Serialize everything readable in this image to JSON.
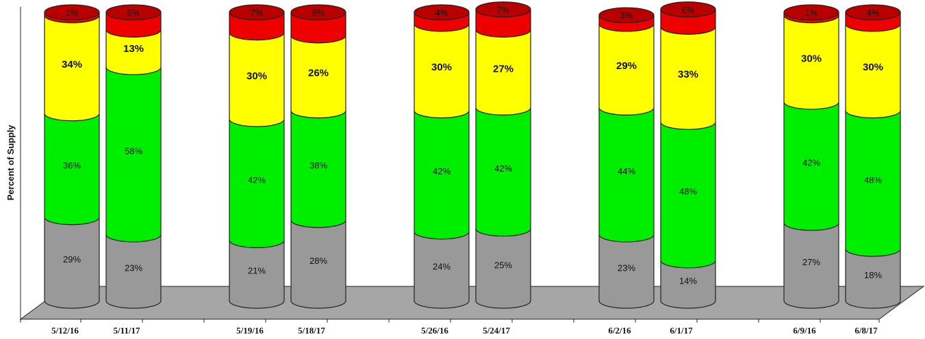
{
  "chart_data": {
    "type": "bar",
    "stacked": true,
    "ylabel": "Percent of Supply",
    "ylim": [
      0,
      100
    ],
    "grid": false,
    "legend": "none",
    "categories": [
      "5/12/16",
      "5/11/17",
      "5/19/16",
      "5/18/17",
      "5/26/16",
      "5/24/17",
      "6/2/16",
      "6/1/17",
      "6/9/16",
      "6/8/17"
    ],
    "series": [
      {
        "color": "#999999",
        "values": [
          29,
          23,
          21,
          28,
          24,
          25,
          23,
          14,
          27,
          18
        ]
      },
      {
        "color": "#00ee00",
        "values": [
          36,
          58,
          42,
          38,
          42,
          42,
          44,
          48,
          42,
          48
        ]
      },
      {
        "color": "#ffff00",
        "values": [
          34,
          13,
          30,
          26,
          30,
          27,
          29,
          33,
          30,
          30
        ]
      },
      {
        "color": "#ee0000",
        "values": [
          1,
          6,
          7,
          8,
          4,
          7,
          3,
          6,
          1,
          4
        ]
      }
    ],
    "value_labels": [
      [
        "29%",
        "36%",
        "34%",
        "1%"
      ],
      [
        "23%",
        "58%",
        "13%",
        "6%"
      ],
      [
        "21%",
        "42%",
        "30%",
        "7%"
      ],
      [
        "28%",
        "38%",
        "26%",
        "8%"
      ],
      [
        "24%",
        "42%",
        "30%",
        "4%"
      ],
      [
        "25%",
        "42%",
        "27%",
        "7%"
      ],
      [
        "23%",
        "44%",
        "29%",
        "3%"
      ],
      [
        "14%",
        "48%",
        "33%",
        "6%"
      ],
      [
        "27%",
        "42%",
        "30%",
        "1%"
      ],
      [
        "18%",
        "48%",
        "30%",
        "4%"
      ]
    ]
  }
}
